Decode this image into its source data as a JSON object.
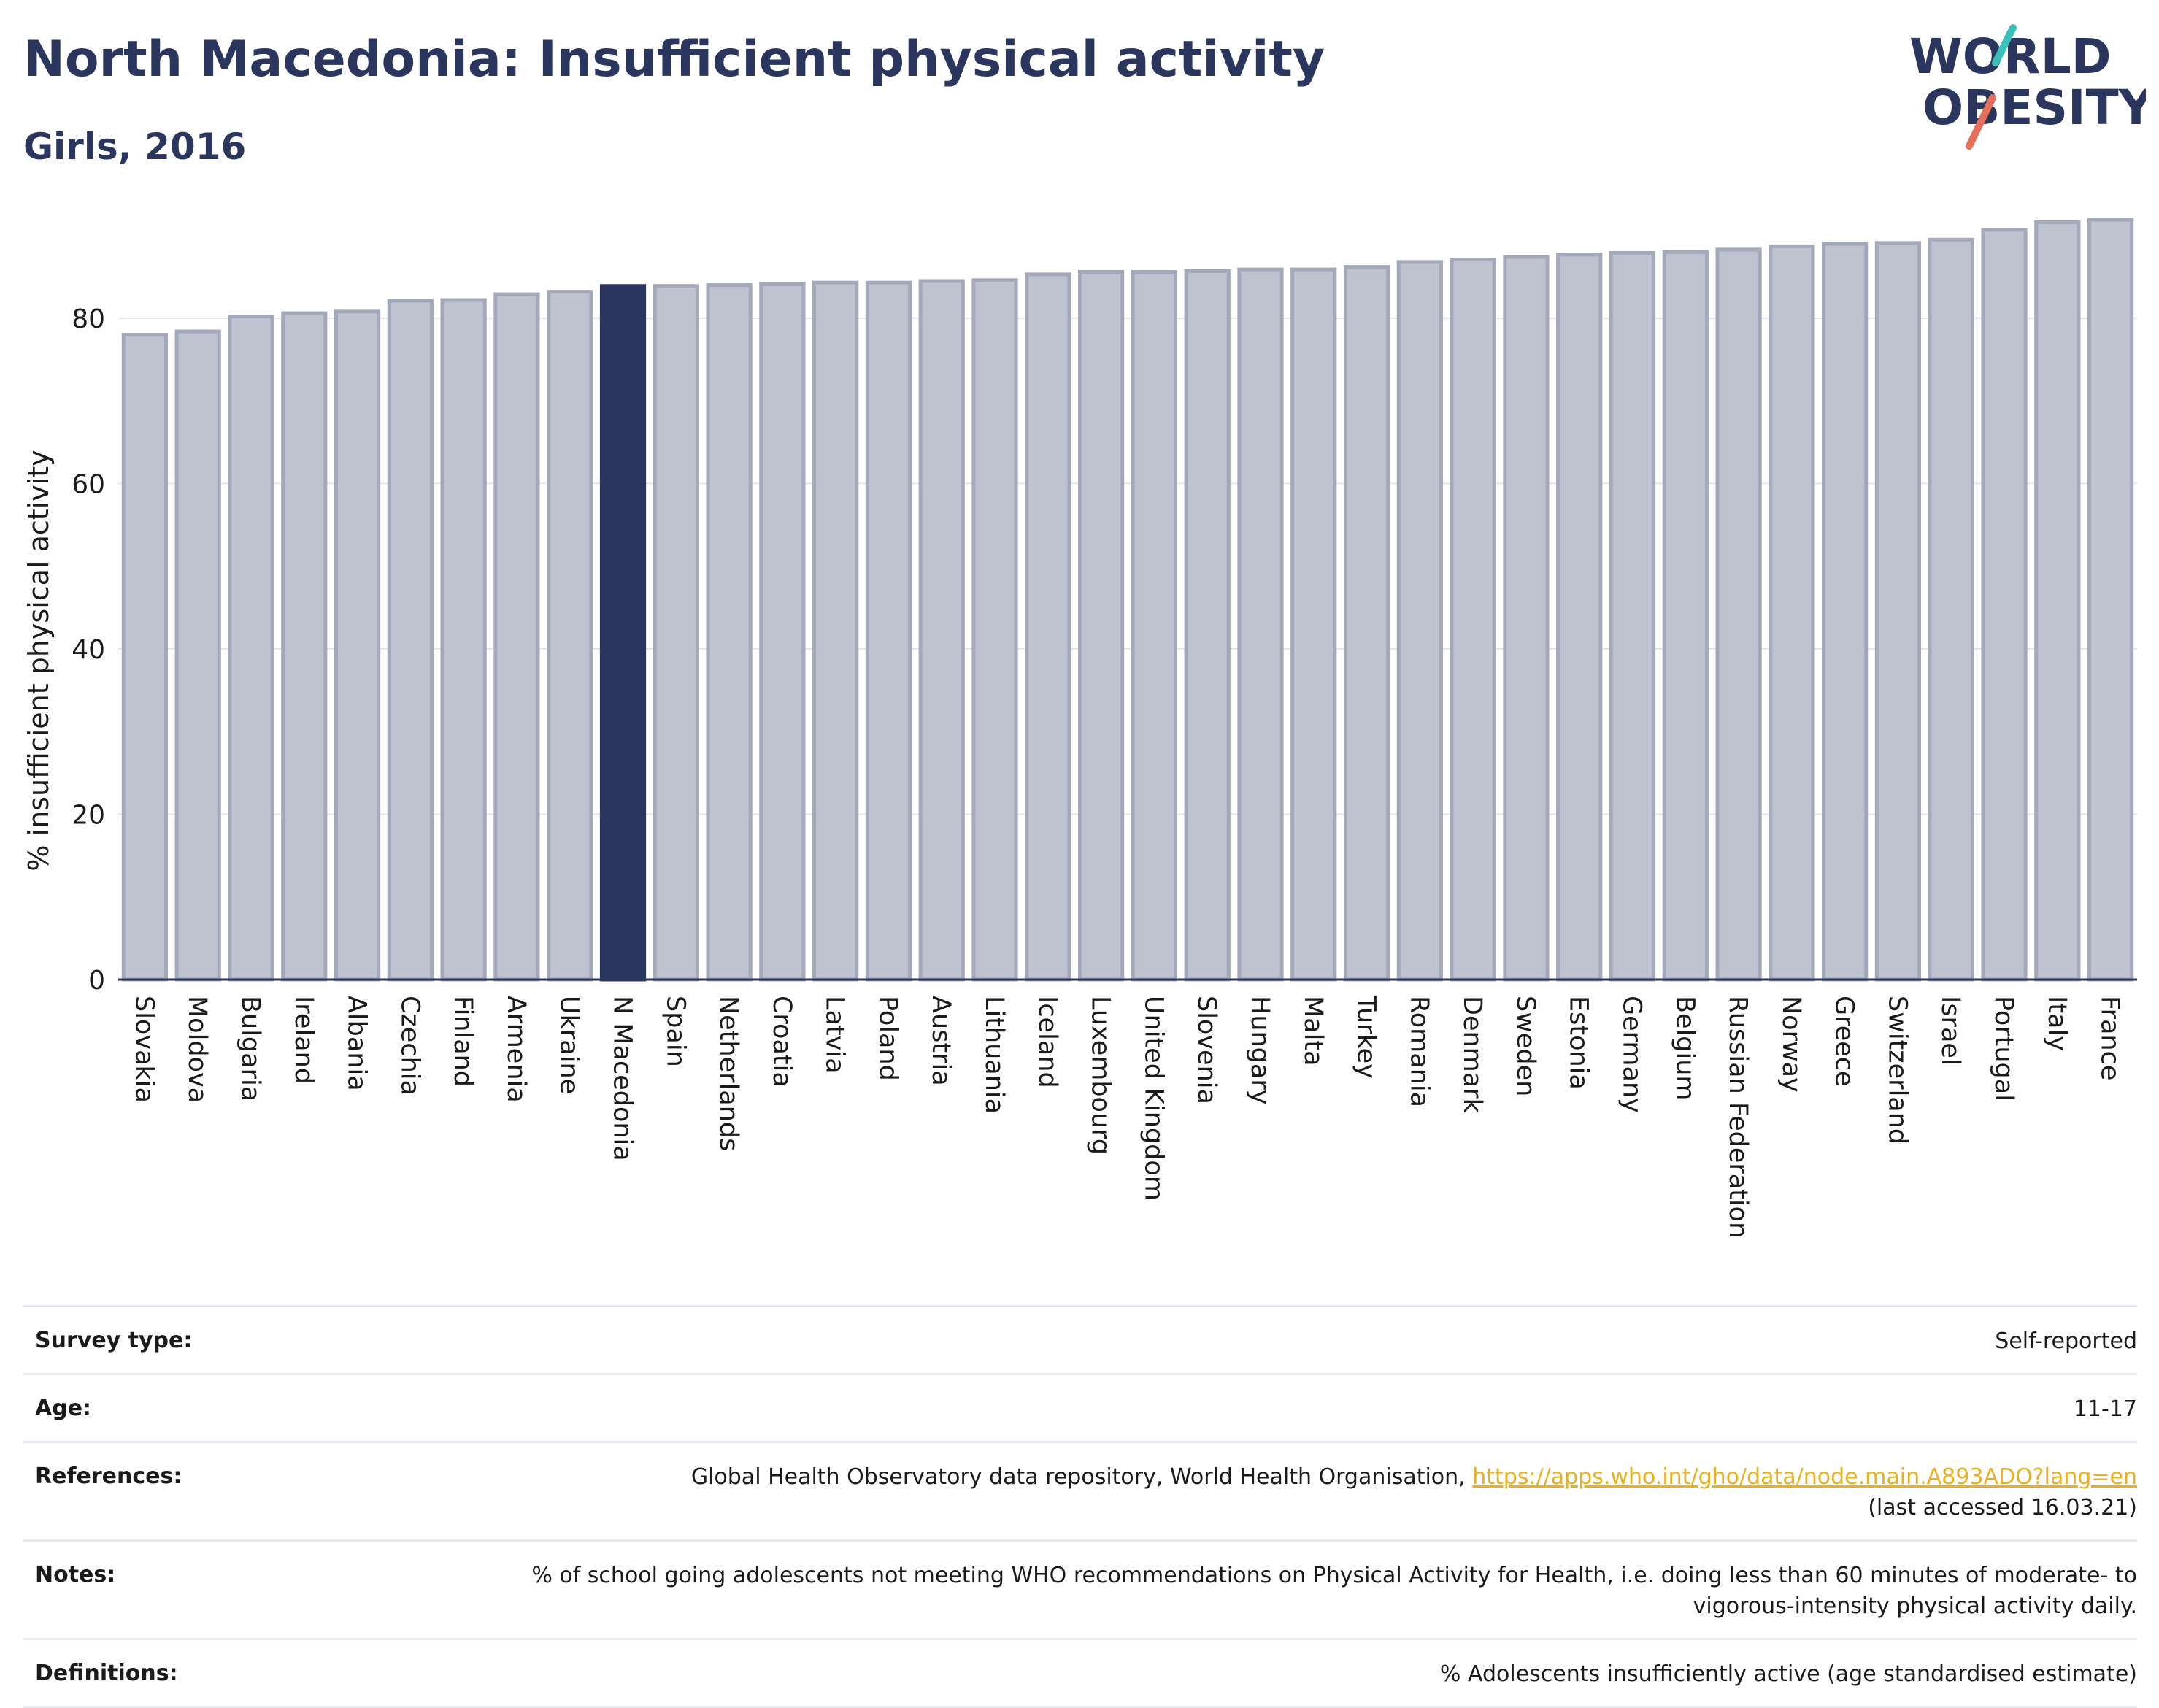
{
  "title": "North Macedonia: Insufficient physical activity",
  "subtitle": "Girls, 2016",
  "logo": {
    "line1": "WORLD",
    "line2": "OBESITY"
  },
  "colors": {
    "bar": "#bfc2cf",
    "bar_stroke": "#a3a8bb",
    "highlight": "#2b365e",
    "text": "#1a1a1a",
    "grid": "#e4e6ec",
    "link": "#e8b120"
  },
  "chart_data": {
    "type": "bar",
    "ylabel": "% insufficient physical activity",
    "ylim": [
      0,
      92
    ],
    "yticks": [
      0,
      20,
      40,
      60,
      80
    ],
    "grid": true,
    "highlight": "N Macedonia",
    "categories": [
      "Slovakia",
      "Moldova",
      "Bulgaria",
      "Ireland",
      "Albania",
      "Czechia",
      "Finland",
      "Armenia",
      "Ukraine",
      "N Macedonia",
      "Spain",
      "Netherlands",
      "Croatia",
      "Latvia",
      "Poland",
      "Austria",
      "Lithuania",
      "Iceland",
      "Luxembourg",
      "United Kingdom",
      "Slovenia",
      "Hungary",
      "Malta",
      "Turkey",
      "Romania",
      "Denmark",
      "Sweden",
      "Estonia",
      "Germany",
      "Belgium",
      "Russian Federation",
      "Norway",
      "Greece",
      "Switzerland",
      "Israel",
      "Portugal",
      "Italy",
      "France"
    ],
    "values": [
      78.0,
      78.4,
      80.2,
      80.6,
      80.8,
      82.1,
      82.2,
      82.9,
      83.2,
      83.9,
      83.9,
      84.0,
      84.1,
      84.3,
      84.3,
      84.5,
      84.6,
      85.3,
      85.6,
      85.6,
      85.7,
      85.9,
      85.9,
      86.2,
      86.8,
      87.1,
      87.4,
      87.7,
      87.9,
      88.0,
      88.3,
      88.7,
      89.0,
      89.1,
      89.5,
      90.7,
      91.6,
      91.9
    ]
  },
  "meta": [
    {
      "label": "Survey type:",
      "value": "Self-reported"
    },
    {
      "label": "Age:",
      "value": "11-17"
    },
    {
      "label": "References:",
      "value": "Global Health Observatory data repository, World Health Organisation,",
      "link": "https://apps.who.int/gho/data/node.main.A893ADO?lang=en",
      "value2": "(last accessed 16.03.21)"
    },
    {
      "label": "Notes:",
      "value": "% of school going adolescents not meeting WHO recommendations on Physical Activity for Health, i.e. doing less than 60 minutes of moderate- to vigorous-intensity physical activity daily."
    },
    {
      "label": "Definitions:",
      "value": "% Adolescents insufficiently active (age standardised estimate)"
    }
  ]
}
